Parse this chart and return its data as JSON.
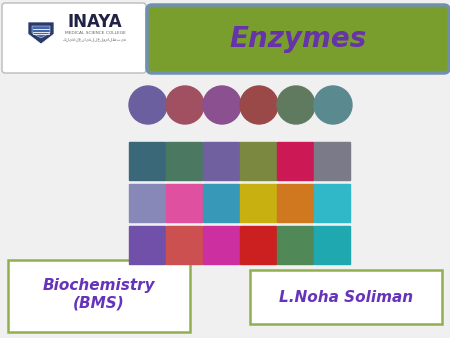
{
  "background_color": "#f0f0f0",
  "title_box_color": "#7a9e2e",
  "title_text": "Enzymes",
  "title_text_color": "#6633aa",
  "title_box_border_color": "#a8c060",
  "title_box_inner_border": "#7090b0",
  "biochemistry_text": "Biochemistry\n(BMS)",
  "biochemistry_color": "#6633bb",
  "lnoha_text": "L.Noha Soliman",
  "lnoha_color": "#6633bb",
  "box_border_color": "#90b050",
  "row1_colors": [
    "#6b5fa0",
    "#a05060",
    "#8a5090",
    "#9a4848",
    "#607a60",
    "#5a8a90"
  ],
  "row2_colors": [
    "#3a6878",
    "#4a7860",
    "#7060a0",
    "#7a8840",
    "#cc1855",
    "#7a7a88"
  ],
  "row3_colors": [
    "#8888b8",
    "#e050a0",
    "#3898b8",
    "#c8b010",
    "#d07820",
    "#30b8c8"
  ],
  "row4_colors": [
    "#7050a8",
    "#cc5050",
    "#cc30a0",
    "#cc2020",
    "#508858",
    "#20a8b0"
  ],
  "logo_box_bg": "#ffffff",
  "inaya_text_color": "#333333",
  "inaya_title_color": "#222244",
  "shield_color1": "#2a3a6a",
  "shield_color2": "#4466aa"
}
